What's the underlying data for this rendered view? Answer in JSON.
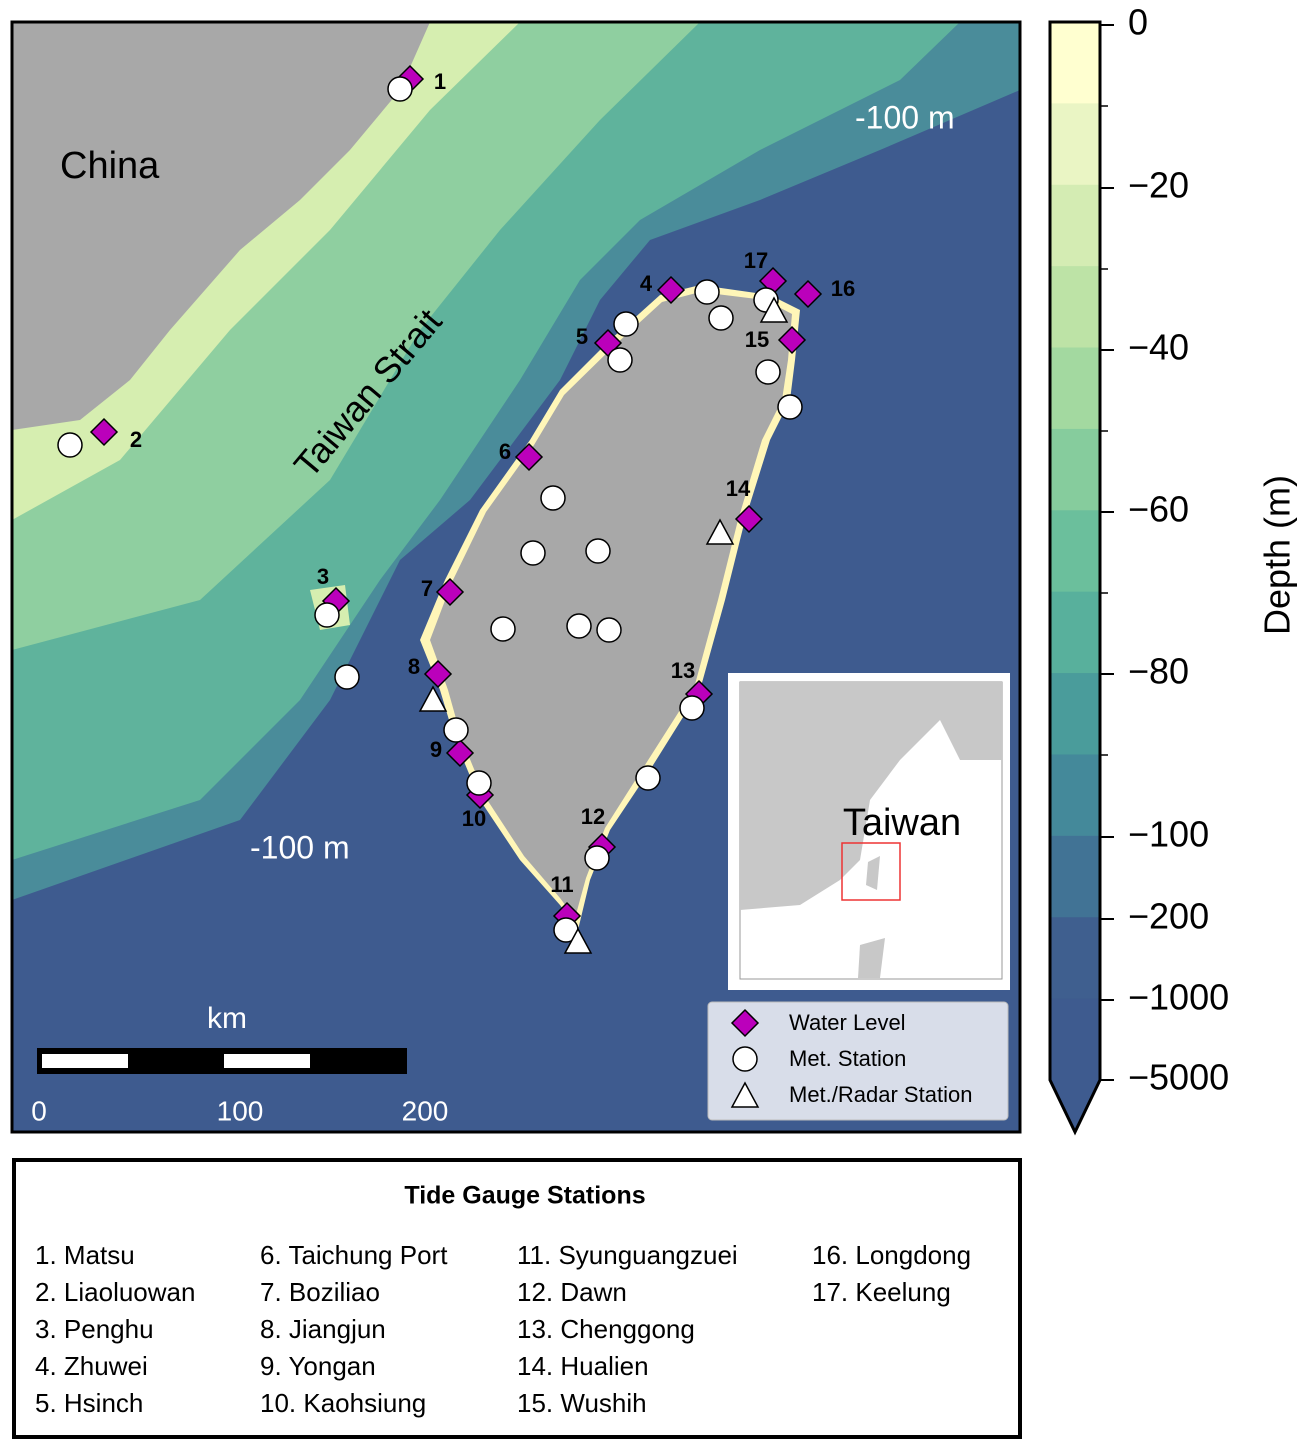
{
  "map": {
    "labels": {
      "china": "China",
      "strait": "Taiwan Strait",
      "depth_north": "-100 m",
      "depth_south": "-100 m"
    },
    "scale_bar": {
      "unit": "km",
      "ticks": [
        "0",
        "100",
        "200"
      ]
    },
    "inset": {
      "label": "Taiwan"
    },
    "legend": [
      "Water Level",
      "Met. Station",
      "Met./Radar Station"
    ],
    "station_numbers": [
      "1",
      "2",
      "3",
      "4",
      "5",
      "6",
      "7",
      "8",
      "9",
      "10",
      "11",
      "12",
      "13",
      "14",
      "15",
      "16",
      "17"
    ]
  },
  "colorbar": {
    "label": "Depth (m)",
    "ticks": [
      "0",
      "−20",
      "−40",
      "−60",
      "−80",
      "−100",
      "−200",
      "−1000",
      "−5000"
    ]
  },
  "station_table": {
    "title": "Tide Gauge Stations",
    "columns": [
      [
        "1. Matsu",
        "2. Liaoluowan",
        "3. Penghu",
        "4. Zhuwei",
        "5. Hsinch"
      ],
      [
        "6. Taichung Port",
        "7. Boziliao",
        "8. Jiangjun",
        "9. Yongan",
        "10. Kaohsiung"
      ],
      [
        "11. Syunguangzuei",
        "12. Dawn",
        "13. Chenggong",
        "14. Hualien",
        "15. Wushih"
      ],
      [
        "16. Longdong",
        "17. Keelung"
      ]
    ]
  }
}
